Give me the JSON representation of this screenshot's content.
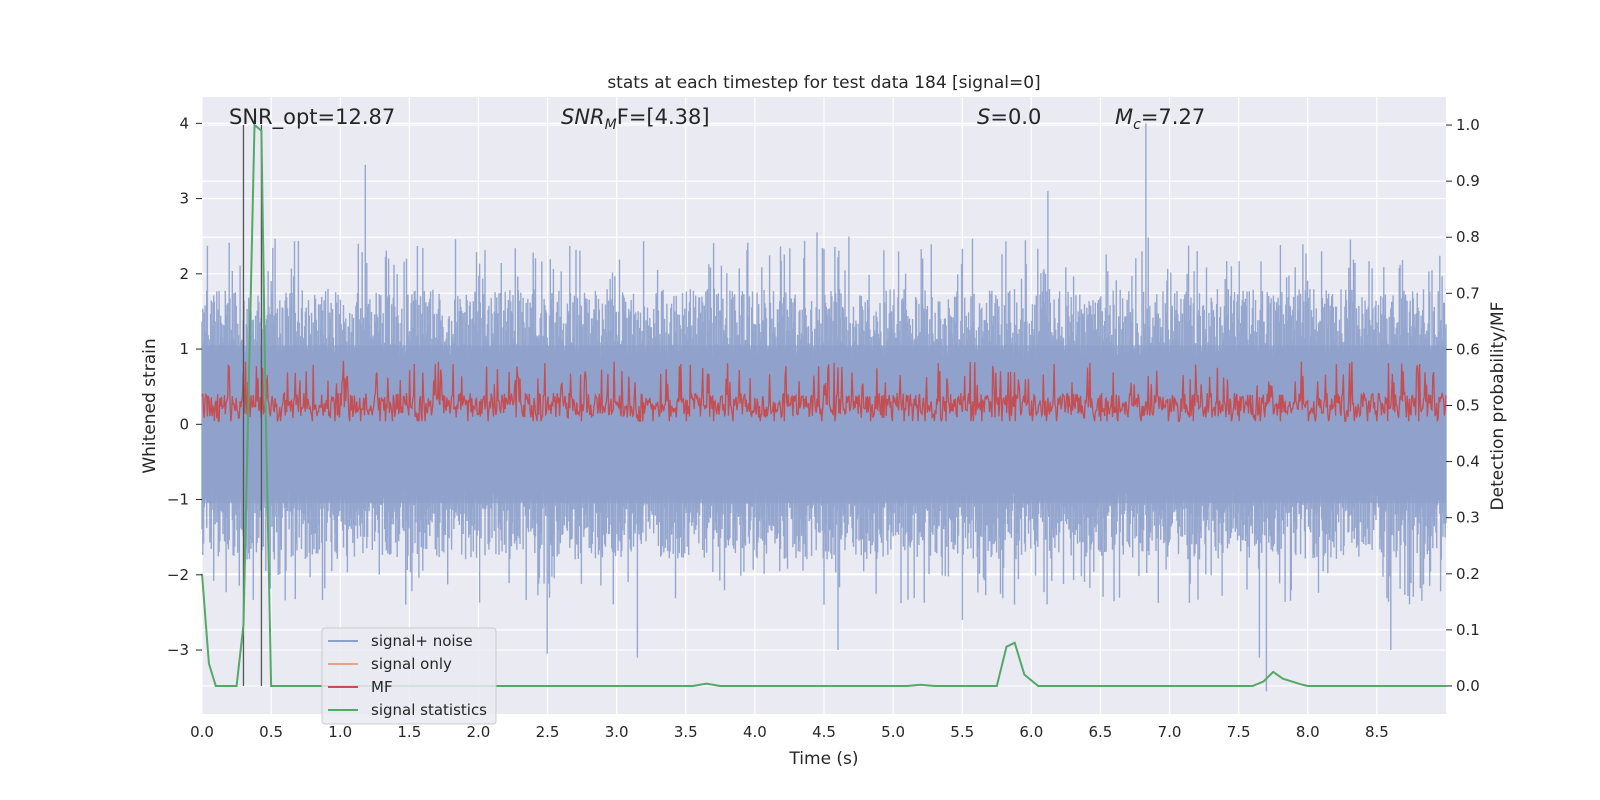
{
  "chart_data": {
    "type": "line",
    "title": "stats at each timestep for test data 184 [signal=0]",
    "xlabel": "Time (s)",
    "ylabel": "Whitened strain",
    "y2label": "Detection probability/MF",
    "xlim": [
      0.0,
      9.0
    ],
    "ylim": [
      -3.85,
      4.35
    ],
    "y2lim": [
      -0.05,
      1.05
    ],
    "xticks": [
      "0.0",
      "0.5",
      "1.0",
      "1.5",
      "2.0",
      "2.5",
      "3.0",
      "3.5",
      "4.0",
      "4.5",
      "5.0",
      "5.5",
      "6.0",
      "6.5",
      "7.0",
      "7.5",
      "8.0",
      "8.5"
    ],
    "yticks": [
      "−3",
      "−2",
      "−1",
      "0",
      "1",
      "2",
      "3",
      "4"
    ],
    "y2ticks": [
      "0.0",
      "0.1",
      "0.2",
      "0.3",
      "0.4",
      "0.5",
      "0.6",
      "0.7",
      "0.8",
      "0.9",
      "1.0"
    ],
    "grid": true,
    "legend_position": "lower-left",
    "legend": [
      {
        "name": "signal+ noise",
        "color": "#8da0cb"
      },
      {
        "name": "signal only",
        "color": "#e8a387"
      },
      {
        "name": "MF",
        "color": "#c44e52"
      },
      {
        "name": "signal statistics",
        "color": "#55a868"
      }
    ],
    "annotations": {
      "snr_opt": "SNR_opt=12.87",
      "snr_mf_prefix": "SNR",
      "snr_mf_sub": "M",
      "snr_mf_suffix": "F=[4.38]",
      "s_prefix": "S",
      "s_suffix": "=0.0",
      "mc_prefix": "M",
      "mc_sub": "c",
      "mc_suffix": "=7.27"
    },
    "vertical_markers_x": [
      0.3,
      0.43
    ],
    "series": [
      {
        "name": "signal+ noise",
        "axis": "left",
        "color": "#8da0cb",
        "description": "whitened strain noise, dense oscillation between about -2.3 and 2.4",
        "spike_times": [
          1.18,
          2.5,
          3.15,
          4.45,
          4.6,
          5.5,
          6.12,
          6.83,
          7.65,
          7.7,
          8.1,
          8.6
        ],
        "spike_values": [
          3.45,
          -3.05,
          -3.1,
          2.55,
          -3.0,
          -2.6,
          3.1,
          4.0,
          -3.1,
          -3.55,
          2.3,
          -3.0
        ]
      },
      {
        "name": "MF",
        "axis": "right",
        "color": "#c44e52",
        "description": "matched filter output, between about 0.47 and 0.6",
        "baseline": 0.5
      },
      {
        "name": "signal statistics",
        "axis": "right",
        "color": "#55a868",
        "x": [
          0.0,
          0.05,
          0.1,
          0.25,
          0.3,
          0.38,
          0.43,
          0.46,
          0.5,
          1.0,
          3.55,
          3.65,
          3.75,
          5.1,
          5.2,
          5.3,
          5.75,
          5.82,
          5.88,
          5.95,
          6.05,
          7.6,
          7.68,
          7.75,
          7.82,
          7.95,
          8.0,
          9.0
        ],
        "y": [
          0.2,
          0.04,
          0.0,
          0.0,
          0.11,
          1.0,
          0.99,
          0.5,
          0.0,
          0.0,
          0.0,
          0.004,
          0.0,
          0.0,
          0.002,
          0.0,
          0.0,
          0.07,
          0.077,
          0.02,
          0.0,
          0.0,
          0.008,
          0.025,
          0.013,
          0.003,
          0.0,
          0.0
        ]
      }
    ]
  }
}
